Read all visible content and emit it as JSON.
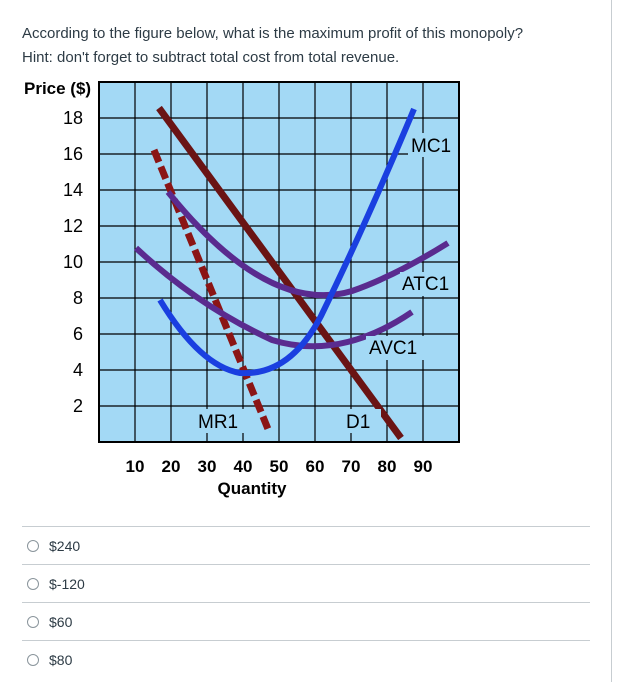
{
  "question": {
    "line1": "According to the figure below, what is the maximum profit of this monopoly?",
    "line2": "Hint: don't forget to subtract total cost from total revenue."
  },
  "figure": {
    "ylabel": "Price ($)",
    "xlabel": "Quantity",
    "yticks": [
      "18",
      "16",
      "14",
      "12",
      "10",
      "8",
      "6",
      "4",
      "2"
    ],
    "xticks": [
      "10",
      "20",
      "30",
      "40",
      "50",
      "60",
      "70",
      "80",
      "90"
    ],
    "labels": {
      "mc": "MC1",
      "atc": "ATC1",
      "avc": "AVC1",
      "mr": "MR1",
      "d": "D1"
    },
    "colors": {
      "grid_bg": "#a3d9f5",
      "demand": "#6a1414",
      "mr": "#8b1515",
      "atc": "#5a2b8f",
      "avc": "#5a2b8f",
      "mc": "#1a3fe0"
    }
  },
  "answers": [
    {
      "label": "$240"
    },
    {
      "label": "$-120"
    },
    {
      "label": "$60"
    },
    {
      "label": "$80"
    }
  ]
}
